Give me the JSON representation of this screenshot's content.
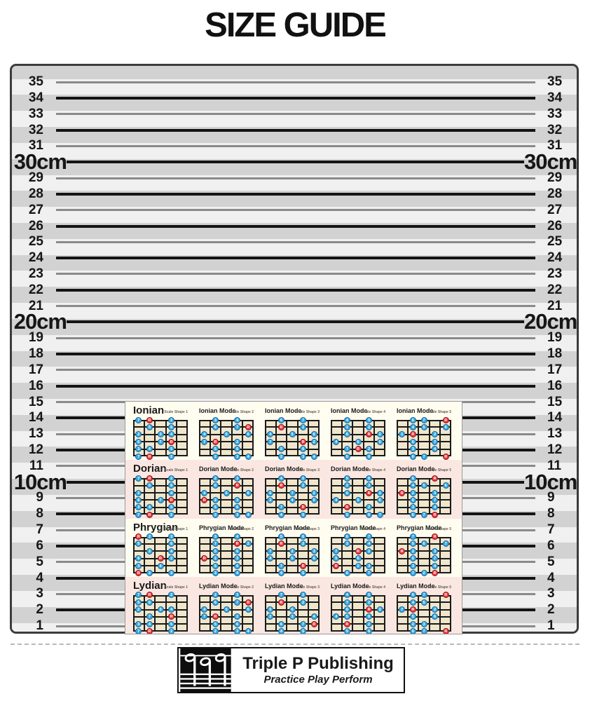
{
  "title": "SIZE GUIDE",
  "ruler": {
    "values": [
      35,
      34,
      33,
      32,
      31,
      30,
      29,
      28,
      27,
      26,
      25,
      24,
      23,
      22,
      21,
      20,
      19,
      18,
      17,
      16,
      15,
      14,
      13,
      12,
      11,
      10,
      9,
      8,
      7,
      6,
      5,
      4,
      3,
      2,
      1
    ],
    "cm_labels": {
      "30": "30cm",
      "20": "20cm",
      "10": "10cm"
    },
    "colors": {
      "stripe_light": "#f0f0f0",
      "stripe_dark": "#d2d2d2",
      "line_gray": "#8a8a8a",
      "line_black": "#141414",
      "border": "#3c3c3c"
    }
  },
  "product": {
    "colors": {
      "section_light": "#fffdf0",
      "section_pink": "#fae7e1",
      "fretboard": "#f0e6cd",
      "dot_blue": "#3aa8e0",
      "dot_red": "#e8343c"
    },
    "rows": [
      {
        "mode": "Ionian",
        "bg": "light",
        "diagrams": [
          {
            "title": "Ionian",
            "shape_label": "Scale Shape 1",
            "dots": "0,0,7;0,1,R;0,3,2;1,1,5;1,3,6;2,0,2;2,2,3;2,3,4;3,0,6;3,2,7;3,3,R;4,0,3;4,1,4;4,3,5;5,0,7;5,1,R;5,3,2"
          },
          {
            "title": "Ionian Mode",
            "shape_label": "Scale Shape 2",
            "dots": "0,1,3;0,3,4;1,1,6;1,3,7;1,4,R;2,0,4;2,2,5;2,4,6;3,0,7;3,1,R;3,3,2;4,1,5;4,3,6;5,1,2;5,3,3;5,4,4"
          },
          {
            "title": "Ionian Mode",
            "shape_label": "Scale Shape 3",
            "dots": "0,1,6;0,3,7;1,1,R;1,3,2;2,0,4;2,2,5;2,4,6;3,0,7;3,3,R;3,4,2;4,1,5;4,3,6;5,1,2;5,3,3;5,4,4"
          },
          {
            "title": "Ionian Mode",
            "shape_label": "Scale Shape 4",
            "dots": "0,1,4;0,3,5;1,1,1;1,3,2;2,1,6;2,3,R;2,4,2;3,0,4;3,2,5;3,4,6;4,1,7;4,2,R;4,3,2;5,1,5;5,3,6"
          },
          {
            "title": "Ionian Mode",
            "shape_label": "Scale Shape 5",
            "dots": "0,1,6;0,2,7;0,4,R;1,1,4;1,2,5;1,4,6;2,0,1;2,1,R;2,3,2;3,1,6;3,3,7;4,1,3;4,3,4;5,1,6;5,2,7;5,4,R"
          }
        ]
      },
      {
        "mode": "Dorian",
        "bg": "pink",
        "diagrams": [
          {
            "title": "Dorian",
            "shape_label": "Scale Shape 1",
            "dots": "0,0,7;0,1,R;0,3,2;1,1,5;1,3,6;2,0,2;2,3,4;3,0,6;3,2,7;3,3,R;4,0,3;4,1,4;4,3,5;5,0,7;5,1,R;5,3,2"
          },
          {
            "title": "Dorian Mode",
            "shape_label": "Scale Shape 2",
            "dots": "0,1,2;0,3,3;1,1,6;1,3,R;2,0,4;2,2,5;2,4,6;3,0,R;3,1,2;3,3,3;4,1,5;4,3,6;5,1,2;5,3,3;5,4,4"
          },
          {
            "title": "Dorian Mode",
            "shape_label": "Scale Shape 3",
            "dots": "0,1,4;0,3,5;1,1,R;1,3,2;2,0,6;2,2,7;2,4,2;3,0,3;3,2,4;3,4,5;4,1,7;4,3,R;5,1,4;5,3,5"
          },
          {
            "title": "Dorian Mode",
            "shape_label": "Scale Shape 4",
            "dots": "0,1,5;0,3,6;1,1,2;1,3,3;2,1,6;2,3,R;2,4,2;3,0,4;3,2,5;3,4,6;4,1,R;4,3,2;5,1,5;5,3,6;5,4,7"
          },
          {
            "title": "Dorian Mode",
            "shape_label": "Scale Shape 5",
            "dots": "0,1,6;0,3,R;1,1,4;1,2,5;1,4,6;2,0,R;2,1,2;2,3,3;3,1,6;3,3,7;4,1,3;4,3,4;5,1,6;5,2,7;5,3,R"
          }
        ]
      },
      {
        "mode": "Phrygian",
        "bg": "light",
        "diagrams": [
          {
            "title": "Phrygian",
            "shape_label": "Scale Shape 1",
            "dots": "0,0,R;0,1,2;0,3,3;1,0,5;1,3,6;2,1,3;2,3,4;3,0,6;3,2,R;3,3,2;4,0,3;4,2,4;5,0,R;5,1,2;5,3,3"
          },
          {
            "title": "Phrygian Mode",
            "shape_label": "Scale Shape 2",
            "dots": "0,1,3;0,3,4;1,1,7;1,3,R;1,4,2;2,1,5;2,3,6;3,0,R;3,1,2;3,3,3;4,1,5;4,3,6;5,1,3;5,3,4"
          },
          {
            "title": "Phrygian Mode",
            "shape_label": "Scale Shape 3",
            "dots": "0,1,5;0,3,6;1,1,R;1,3,2;2,0,7;2,2,2;2,4,3;3,0,4;3,2,5;3,4,6;4,1,7;4,3,R;5,1,4;5,3,5"
          },
          {
            "title": "Phrygian Mode",
            "shape_label": "Scale Shape 4",
            "dots": "0,1,6;0,3,7;1,1,3;1,3,4;2,0,7;2,2,R;2,3,2;3,0,5;3,2,6;4,0,R;4,2,2;4,3,3;5,1,6;5,3,7"
          },
          {
            "title": "Phrygian Mode",
            "shape_label": "Scale Shape 5",
            "dots": "0,1,7;0,3,R;1,1,5;1,2,6;1,4,7;2,0,R;2,1,2;2,3,3;3,1,6;3,3,7;4,1,3;4,3,4;5,1,7;5,2,2;5,3,R"
          }
        ]
      },
      {
        "mode": "Lydian",
        "bg": "pink",
        "diagrams": [
          {
            "title": "Lydian",
            "shape_label": "Scale Shape 1",
            "dots": "0,0,7;0,1,R;0,3,2;1,0,5;1,1,6;2,0,2;2,2,3;2,3,4;3,1,7;3,3,R;4,0,3;4,1,4;4,3,5;5,0,7;5,1,R;5,3,2"
          },
          {
            "title": "Lydian Mode",
            "shape_label": "Scale Shape 2",
            "dots": "0,1,2;0,3,3;1,1,6;1,3,7;1,4,R;2,0,4;2,2,5;2,4,6;3,0,7;3,1,R;3,3,2;4,1,5;4,3,6;5,1,2;5,3,3;5,4,4"
          },
          {
            "title": "Lydian Mode",
            "shape_label": "Scale Shape 3",
            "dots": "0,1,7;0,3,2;1,1,R;1,3,2;2,0,5;2,2,6;3,0,2;3,2,3;3,4,4;4,1,6;4,3,7;4,4,R;5,1,4;5,3,5"
          },
          {
            "title": "Lydian Mode",
            "shape_label": "Scale Shape 4",
            "dots": "0,1,4;0,3,5;1,1,7;1,3,2;2,1,6;2,3,R;2,4,2;3,0,4;3,1,5;3,3,6;4,1,R;4,3,2;5,1,5;5,3,6"
          },
          {
            "title": "Lydian Mode",
            "shape_label": "Scale Shape 5",
            "dots": "0,1,6;0,2,7;0,4,R;1,1,4;1,2,5;2,0,7;2,1,R;2,3,2;3,1,5;3,3,6;4,1,2;4,2,3;5,1,6;5,2,7;5,4,R"
          }
        ]
      }
    ]
  },
  "logo": {
    "name": "Triple P Publishing",
    "tagline": "Practice Play Perform"
  }
}
